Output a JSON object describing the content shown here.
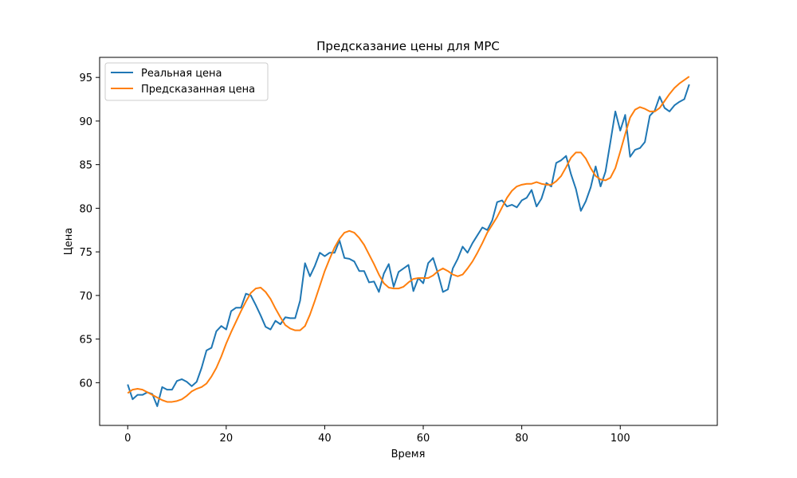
{
  "chart_data": {
    "type": "line",
    "title": "Предсказание цены для MPC",
    "xlabel": "Время",
    "ylabel": "Цена",
    "xlim": [
      -5.7,
      119.7
    ],
    "ylim": [
      55.1,
      97.3
    ],
    "xticks": [
      0,
      20,
      40,
      60,
      80,
      100
    ],
    "yticks": [
      60,
      65,
      70,
      75,
      80,
      85,
      90,
      95
    ],
    "grid": false,
    "legend_position": "top-left",
    "series": [
      {
        "name": "Реальная цена",
        "color": "#1f77b4",
        "x": [
          0,
          1,
          2,
          3,
          4,
          5,
          6,
          7,
          8,
          9,
          10,
          11,
          12,
          13,
          14,
          15,
          16,
          17,
          18,
          19,
          20,
          21,
          22,
          23,
          24,
          25,
          26,
          27,
          28,
          29,
          30,
          31,
          32,
          33,
          34,
          35,
          36,
          37,
          38,
          39,
          40,
          41,
          42,
          43,
          44,
          45,
          46,
          47,
          48,
          49,
          50,
          51,
          52,
          53,
          54,
          55,
          56,
          57,
          58,
          59,
          60,
          61,
          62,
          63,
          64,
          65,
          66,
          67,
          68,
          69,
          70,
          71,
          72,
          73,
          74,
          75,
          76,
          77,
          78,
          79,
          80,
          81,
          82,
          83,
          84,
          85,
          86,
          87,
          88,
          89,
          90,
          91,
          92,
          93,
          94,
          95,
          96,
          97,
          98,
          99,
          100,
          101,
          102,
          103,
          104,
          105,
          106,
          107,
          108,
          109,
          110,
          111,
          112,
          113,
          114
        ],
        "values": [
          59.8,
          58.1,
          58.6,
          58.6,
          58.9,
          58.7,
          57.3,
          59.5,
          59.2,
          59.2,
          60.2,
          60.4,
          60.1,
          59.6,
          60.1,
          61.7,
          63.7,
          64.0,
          65.9,
          66.5,
          66.1,
          68.2,
          68.6,
          68.6,
          70.2,
          70.0,
          68.9,
          67.7,
          66.4,
          66.1,
          67.1,
          66.7,
          67.5,
          67.4,
          67.4,
          69.4,
          73.7,
          72.2,
          73.4,
          74.9,
          74.5,
          74.9,
          74.9,
          76.3,
          74.3,
          74.2,
          73.9,
          72.8,
          72.8,
          71.5,
          71.6,
          70.4,
          72.5,
          73.6,
          71.0,
          72.7,
          73.1,
          73.5,
          70.5,
          72.0,
          71.4,
          73.7,
          74.3,
          72.5,
          70.4,
          70.7,
          73.1,
          74.2,
          75.6,
          74.9,
          76.0,
          76.9,
          77.8,
          77.5,
          78.6,
          80.7,
          80.9,
          80.2,
          80.4,
          80.1,
          80.9,
          81.2,
          82.1,
          80.2,
          81.1,
          82.9,
          82.5,
          85.2,
          85.5,
          86.0,
          83.9,
          82.2,
          79.7,
          80.8,
          82.4,
          84.8,
          82.5,
          84.2,
          87.6,
          91.1,
          88.9,
          90.7,
          85.9,
          86.7,
          86.9,
          87.6,
          90.6,
          91.2,
          92.8,
          91.5,
          91.1,
          91.8,
          92.2,
          92.5,
          94.2
        ]
      },
      {
        "name": "Предсказанная цена",
        "color": "#ff7f0e",
        "x": [
          0,
          1,
          2,
          3,
          4,
          5,
          6,
          7,
          8,
          9,
          10,
          11,
          12,
          13,
          14,
          15,
          16,
          17,
          18,
          19,
          20,
          21,
          22,
          23,
          24,
          25,
          26,
          27,
          28,
          29,
          30,
          31,
          32,
          33,
          34,
          35,
          36,
          37,
          38,
          39,
          40,
          41,
          42,
          43,
          44,
          45,
          46,
          47,
          48,
          49,
          50,
          51,
          52,
          53,
          54,
          55,
          56,
          57,
          58,
          59,
          60,
          61,
          62,
          63,
          64,
          65,
          66,
          67,
          68,
          69,
          70,
          71,
          72,
          73,
          74,
          75,
          76,
          77,
          78,
          79,
          80,
          81,
          82,
          83,
          84,
          85,
          86,
          87,
          88,
          89,
          90,
          91,
          92,
          93,
          94,
          95,
          96,
          97,
          98,
          99,
          100,
          101,
          102,
          103,
          104,
          105,
          106,
          107,
          108,
          109,
          110,
          111,
          112,
          113,
          114
        ],
        "values": [
          58.8,
          59.2,
          59.3,
          59.2,
          58.9,
          58.6,
          58.3,
          58.0,
          57.8,
          57.8,
          57.9,
          58.1,
          58.5,
          59.0,
          59.3,
          59.5,
          59.9,
          60.7,
          61.7,
          63.0,
          64.5,
          65.8,
          67.0,
          68.2,
          69.3,
          70.3,
          70.8,
          70.9,
          70.4,
          69.6,
          68.5,
          67.5,
          66.6,
          66.2,
          66.0,
          66.0,
          66.5,
          67.8,
          69.4,
          71.1,
          72.8,
          74.2,
          75.5,
          76.5,
          77.2,
          77.4,
          77.2,
          76.6,
          75.8,
          74.7,
          73.6,
          72.4,
          71.4,
          70.9,
          70.8,
          70.8,
          71.0,
          71.5,
          71.9,
          72.0,
          72.0,
          72.0,
          72.3,
          72.8,
          73.1,
          72.8,
          72.4,
          72.2,
          72.4,
          73.1,
          73.9,
          74.9,
          76.0,
          77.2,
          78.1,
          79.0,
          80.1,
          81.2,
          82.0,
          82.5,
          82.7,
          82.8,
          82.8,
          83.0,
          82.8,
          82.7,
          82.7,
          83.1,
          83.7,
          84.7,
          85.8,
          86.4,
          86.4,
          85.7,
          84.6,
          83.7,
          83.3,
          83.2,
          83.5,
          84.6,
          86.5,
          88.5,
          90.4,
          91.3,
          91.6,
          91.4,
          91.1,
          91.1,
          91.5,
          92.3,
          93.1,
          93.8,
          94.3,
          94.7,
          95.1
        ]
      }
    ]
  }
}
